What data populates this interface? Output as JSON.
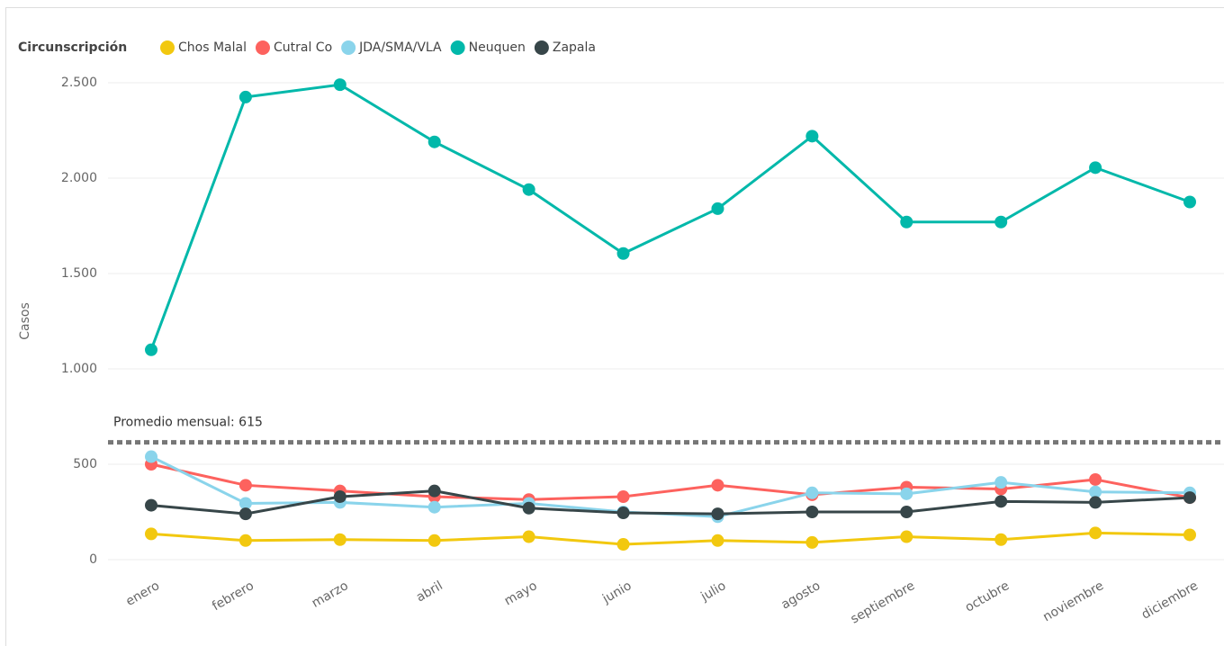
{
  "chart_data": {
    "type": "line",
    "legend_title": "Circunscripción",
    "y_label": "Casos",
    "categories": [
      "enero",
      "febrero",
      "marzo",
      "abril",
      "mayo",
      "junio",
      "julio",
      "agosto",
      "septiembre",
      "octubre",
      "noviembre",
      "diciembre"
    ],
    "series": [
      {
        "name": "Chos Malal",
        "color": "#f2c80f",
        "values": [
          135,
          100,
          105,
          100,
          120,
          80,
          100,
          90,
          120,
          105,
          140,
          130
        ]
      },
      {
        "name": "Cutral Co",
        "color": "#fd625e",
        "values": [
          500,
          390,
          360,
          330,
          315,
          330,
          390,
          340,
          380,
          370,
          420,
          325
        ]
      },
      {
        "name": "JDA/SMA/VLA",
        "color": "#8ad4eb",
        "values": [
          540,
          295,
          300,
          275,
          295,
          250,
          225,
          350,
          345,
          405,
          355,
          350
        ]
      },
      {
        "name": "Neuquen",
        "color": "#01b8aa",
        "values": [
          1100,
          2425,
          2490,
          2190,
          1940,
          1605,
          1840,
          2220,
          1770,
          1770,
          2055,
          1875
        ]
      },
      {
        "name": "Zapala",
        "color": "#374649",
        "values": [
          285,
          240,
          330,
          360,
          270,
          245,
          240,
          250,
          250,
          305,
          300,
          325
        ]
      }
    ],
    "reference_line": {
      "label": "Promedio mensual: 615",
      "value": 615
    },
    "ylim": [
      0,
      2500
    ],
    "yticks": [
      0,
      500,
      {
        "value": 1000,
        "label": "1.000"
      },
      {
        "value": 1500,
        "label": "1.500"
      },
      {
        "value": 2000,
        "label": "2.000"
      },
      {
        "value": 2500,
        "label": "2.500"
      }
    ],
    "grid": true
  }
}
